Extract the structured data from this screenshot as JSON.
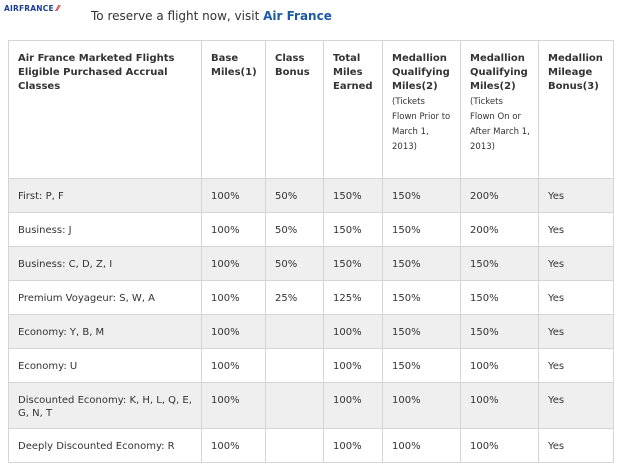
{
  "header": {
    "logo_text": "AIRFRANCE",
    "intro_text": "To reserve a flight now, visit ",
    "intro_link": "Air France"
  },
  "table": {
    "columns": [
      {
        "label": "Air France Marketed Flights Eligible Purchased Accrual Classes",
        "sub": ""
      },
      {
        "label": "Base Miles(1)",
        "sub": ""
      },
      {
        "label": "Class Bonus",
        "sub": ""
      },
      {
        "label": "Total Miles Earned",
        "sub": ""
      },
      {
        "label": "Medallion Qualifying Miles(2)",
        "sub": "(Tickets Flown Prior to March 1, 2013)"
      },
      {
        "label": "Medallion Qualifying Miles(2)",
        "sub": "(Tickets Flown On or After March 1, 2013)"
      },
      {
        "label": "Medallion Mileage Bonus(3)",
        "sub": ""
      }
    ],
    "rows": [
      [
        "First: P, F",
        "100%",
        "50%",
        "150%",
        "150%",
        "200%",
        "Yes"
      ],
      [
        "Business: J",
        "100%",
        "50%",
        "150%",
        "150%",
        "200%",
        "Yes"
      ],
      [
        "Business: C, D, Z, I",
        "100%",
        "50%",
        "150%",
        "150%",
        "150%",
        "Yes"
      ],
      [
        "Premium Voyageur: S, W, A",
        "100%",
        "25%",
        "125%",
        "150%",
        "150%",
        "Yes"
      ],
      [
        "Economy: Y, B, M",
        "100%",
        "",
        "100%",
        "150%",
        "150%",
        "Yes"
      ],
      [
        "Economy: U",
        "100%",
        "",
        "100%",
        "150%",
        "100%",
        "Yes"
      ],
      [
        "Discounted Economy: K, H, L, Q, E, G, N, T",
        "100%",
        "",
        "100%",
        "100%",
        "100%",
        "Yes"
      ],
      [
        "Deeply Discounted Economy: R",
        "100%",
        "",
        "100%",
        "100%",
        "100%",
        "Yes"
      ]
    ]
  }
}
